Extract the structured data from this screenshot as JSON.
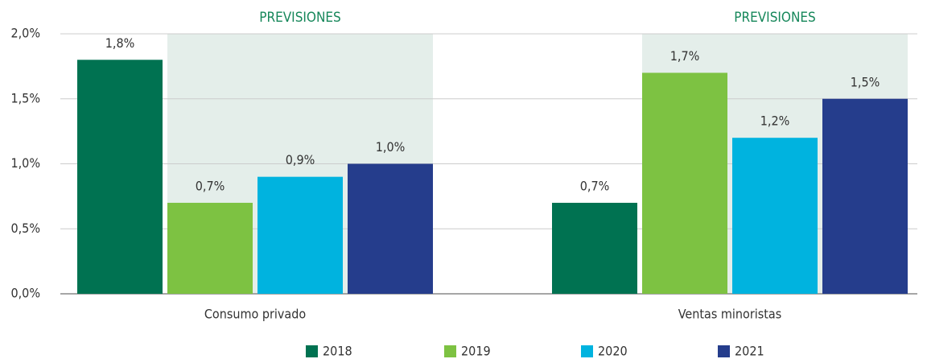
{
  "chart_data": {
    "type": "bar",
    "annotations": [
      "PREVISIONES",
      "PREVISIONES"
    ],
    "categories": [
      "Consumo privado",
      "Ventas minoristas"
    ],
    "series": [
      {
        "name": "2018",
        "color": "#007251",
        "values": [
          1.8,
          0.7
        ],
        "value_labels": [
          "1,8%",
          "0,7%"
        ]
      },
      {
        "name": "2019",
        "color": "#7dc242",
        "values": [
          0.7,
          1.7
        ],
        "value_labels": [
          "0,7%",
          "1,7%"
        ]
      },
      {
        "name": "2020",
        "color": "#00b3df",
        "values": [
          0.9,
          1.2
        ],
        "value_labels": [
          "0,9%",
          "1,2%"
        ]
      },
      {
        "name": "2021",
        "color": "#253d8c",
        "values": [
          1.0,
          1.5
        ],
        "value_labels": [
          "1,0%",
          "1,5%"
        ]
      }
    ],
    "ylim": [
      0,
      2
    ],
    "yticks": [
      {
        "value": 0,
        "label": "0,0%"
      },
      {
        "value": 0.5,
        "label": "0,5%"
      },
      {
        "value": 1,
        "label": "1,0%"
      },
      {
        "value": 1.5,
        "label": "1,5%"
      },
      {
        "value": 2,
        "label": "2,0%"
      }
    ],
    "grid": true,
    "legend": "bottom"
  }
}
